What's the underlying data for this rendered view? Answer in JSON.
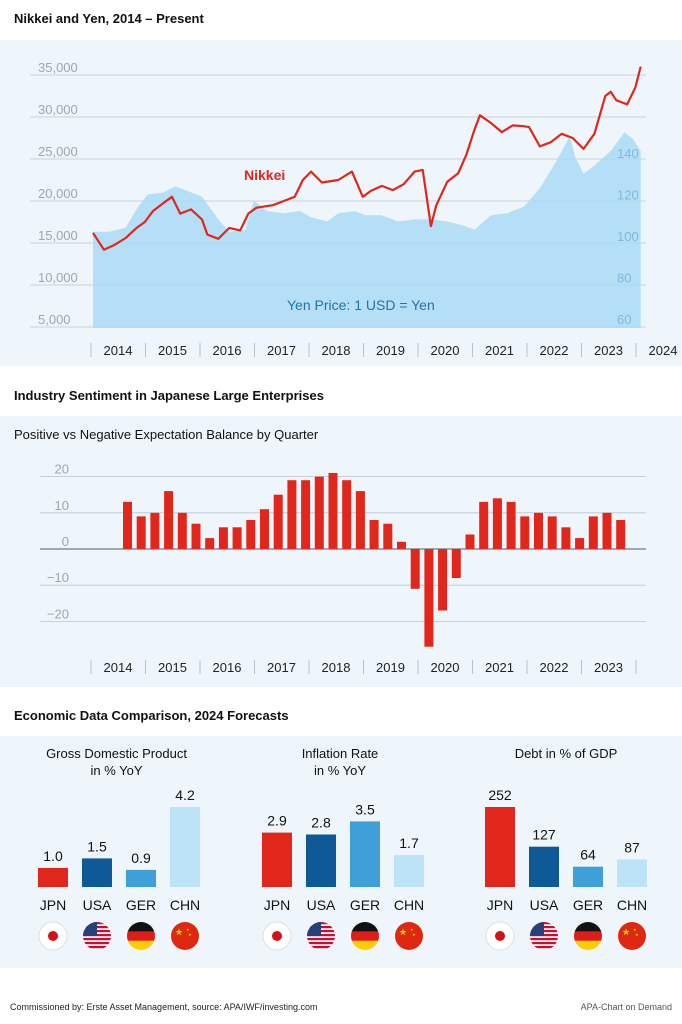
{
  "sections": {
    "s1_title": "Nikkei and Yen, 2014 – Present",
    "s2_title": "Industry Sentiment in Japanese Large Enterprises",
    "s3_title": "Economic Data Comparison, 2024 Forecasts"
  },
  "footer": {
    "left": "Commissioned by: Erste Asset Management, source: APA/IWF/investing.com",
    "right": "APA-Chart on Demand"
  },
  "colors": {
    "red": "#e1261c",
    "dark_blue": "#0e5a96",
    "mid_blue": "#3f9fd8",
    "light_blue": "#bde3f7",
    "area_blue": "#a9dbf5",
    "panel": "#eef6fb"
  },
  "chart_data": [
    {
      "type": "line",
      "title": "",
      "years": [
        "2014",
        "2015",
        "2016",
        "2017",
        "2018",
        "2019",
        "2020",
        "2021",
        "2022",
        "2023",
        "2024"
      ],
      "series": [
        {
          "name": "Nikkei",
          "axis": "left",
          "ylim": [
            5000,
            36000
          ],
          "yticks": [
            "5,000",
            "10,000",
            "15,000",
            "20,000",
            "25,000",
            "30,000",
            "35,000"
          ],
          "x": [
            2014.0,
            2014.2,
            2014.4,
            2014.6,
            2014.8,
            2014.95,
            2015.1,
            2015.3,
            2015.45,
            2015.6,
            2015.8,
            2016.0,
            2016.1,
            2016.3,
            2016.5,
            2016.7,
            2016.85,
            2017.0,
            2017.3,
            2017.5,
            2017.7,
            2017.85,
            2018.0,
            2018.2,
            2018.5,
            2018.75,
            2018.95,
            2019.1,
            2019.3,
            2019.5,
            2019.7,
            2019.9,
            2020.05,
            2020.2,
            2020.3,
            2020.5,
            2020.7,
            2020.85,
            2021.0,
            2021.1,
            2021.3,
            2021.5,
            2021.7,
            2021.9,
            2022.0,
            2022.2,
            2022.4,
            2022.6,
            2022.8,
            2023.0,
            2023.2,
            2023.4,
            2023.5,
            2023.6,
            2023.8,
            2023.95,
            2024.05
          ],
          "values": [
            16200,
            14200,
            14800,
            15600,
            16800,
            17500,
            18800,
            19800,
            20500,
            18500,
            19000,
            17800,
            16000,
            15500,
            16800,
            16500,
            18500,
            19200,
            19500,
            20000,
            20500,
            22500,
            23500,
            22200,
            22500,
            23500,
            20500,
            21200,
            21800,
            21300,
            22000,
            23500,
            23700,
            17000,
            19500,
            22300,
            23300,
            25500,
            28500,
            30200,
            29300,
            28200,
            29000,
            28900,
            28800,
            26500,
            27000,
            28000,
            27500,
            26200,
            28000,
            32500,
            33000,
            32000,
            31500,
            33500,
            36000
          ]
        },
        {
          "name": "Yen Price: 1 USD = Yen",
          "axis": "right",
          "ylim": [
            58,
            150
          ],
          "yticks": [
            "60",
            "80",
            "100",
            "120",
            "140"
          ],
          "x": [
            2014.0,
            2014.3,
            2014.6,
            2014.8,
            2015.0,
            2015.3,
            2015.5,
            2015.8,
            2016.0,
            2016.3,
            2016.5,
            2016.8,
            2016.95,
            2017.2,
            2017.5,
            2017.8,
            2018.0,
            2018.3,
            2018.5,
            2018.8,
            2019.0,
            2019.3,
            2019.6,
            2019.9,
            2020.2,
            2020.5,
            2020.8,
            2021.0,
            2021.3,
            2021.6,
            2021.9,
            2022.2,
            2022.5,
            2022.75,
            2022.85,
            2023.0,
            2023.2,
            2023.5,
            2023.75,
            2023.9,
            2024.05
          ],
          "values": [
            102,
            102,
            104,
            113,
            120,
            121,
            124,
            121,
            119,
            108,
            102,
            103,
            117,
            112,
            111,
            112,
            109,
            107,
            111,
            112,
            110,
            110,
            107,
            108,
            108,
            107,
            105,
            103,
            110,
            111,
            114,
            123,
            136,
            148,
            138,
            130,
            134,
            141,
            150,
            147,
            141
          ]
        }
      ],
      "annotations": {
        "nikkei_label": "Nikkei",
        "yen_label": "Yen Price: 1 USD = Yen"
      }
    },
    {
      "type": "bar",
      "title": "Positive vs Negative Expectation Balance by Quarter",
      "ylim": [
        -28,
        22
      ],
      "yticks": [
        {
          "v": 20,
          "label": "20"
        },
        {
          "v": 10,
          "label": "10"
        },
        {
          "v": 0,
          "label": "0"
        },
        {
          "v": -10,
          "label": "−10"
        },
        {
          "v": -20,
          "label": "−20"
        }
      ],
      "years": [
        "2014",
        "2015",
        "2016",
        "2017",
        "2018",
        "2019",
        "2020",
        "2021",
        "2022",
        "2023"
      ],
      "values": [
        13,
        9,
        10,
        16,
        10,
        7,
        3,
        6,
        6,
        8,
        11,
        15,
        19,
        19,
        20,
        21,
        19,
        16,
        8,
        7,
        2,
        -11,
        -27,
        -17,
        -8,
        4,
        13,
        14,
        13,
        9,
        10,
        9,
        6,
        3,
        9,
        10,
        8
      ]
    },
    {
      "type": "bar",
      "title": "Gross Domestic Product in % YoY",
      "title_lines": [
        "Gross Domestic Product",
        "in % YoY"
      ],
      "categories": [
        "JPN",
        "USA",
        "GER",
        "CHN"
      ],
      "values": [
        1.0,
        1.5,
        0.9,
        4.2
      ],
      "labels": [
        "1.0",
        "1.5",
        "0.9",
        "4.2"
      ]
    },
    {
      "type": "bar",
      "title": "Inflation Rate in % YoY",
      "title_lines": [
        "Inflation Rate",
        "in % YoY"
      ],
      "categories": [
        "JPN",
        "USA",
        "GER",
        "CHN"
      ],
      "values": [
        2.9,
        2.8,
        3.5,
        1.7
      ],
      "labels": [
        "2.9",
        "2.8",
        "3.5",
        "1.7"
      ]
    },
    {
      "type": "bar",
      "title": "Debt in % of GDP",
      "title_lines": [
        "Debt in % of GDP"
      ],
      "categories": [
        "JPN",
        "USA",
        "GER",
        "CHN"
      ],
      "values": [
        252,
        127,
        64,
        87
      ],
      "labels": [
        "252",
        "127",
        "64",
        "87"
      ]
    }
  ],
  "flags": [
    "japan-flag-icon",
    "usa-flag-icon",
    "germany-flag-icon",
    "china-flag-icon"
  ]
}
